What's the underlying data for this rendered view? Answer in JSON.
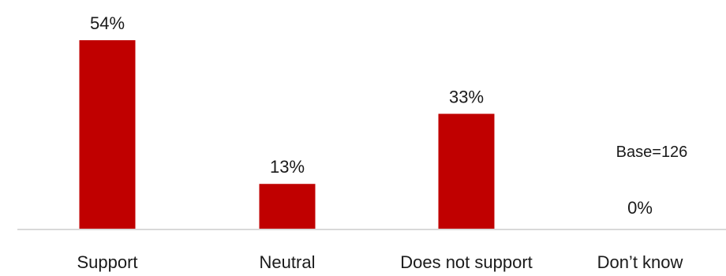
{
  "chart_data": {
    "type": "bar",
    "categories": [
      "Support",
      "Neutral",
      "Does not support",
      "Don’t know"
    ],
    "values": [
      54,
      13,
      33,
      0
    ],
    "value_labels": [
      "54%",
      "13%",
      "33%",
      "0%"
    ],
    "series": [
      {
        "values": [
          54,
          13,
          33,
          0
        ]
      }
    ],
    "ylim": [
      0,
      54
    ],
    "grid": false,
    "legend": "none",
    "bar_color": "#c00000",
    "baseline_color": "#d9d9d9",
    "annotation": "Base=126"
  }
}
